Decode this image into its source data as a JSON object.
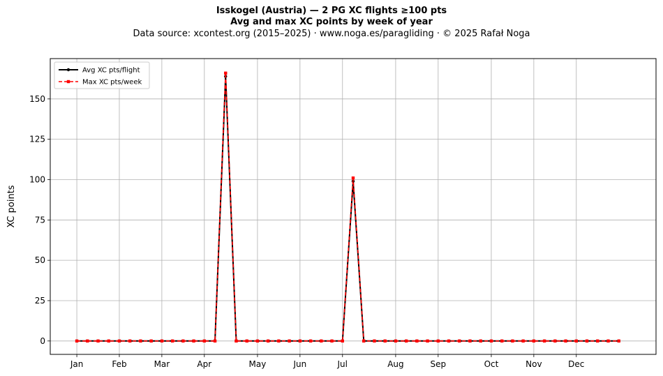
{
  "chart_data": {
    "type": "line",
    "title_line1": "Isskogel (Austria)  —  2 PG XC flights ≥100 pts",
    "title_line2": "Avg and max XC points by week of year",
    "subtitle": "Data source: xcontest.org (2015–2025)  ·  www.noga.es/paragliding  ·  © 2025 Rafał Noga",
    "ylabel": "XC points",
    "xlabel": "",
    "x_ticks": [
      {
        "label": "Jan",
        "week": 1
      },
      {
        "label": "Feb",
        "week": 5
      },
      {
        "label": "Mar",
        "week": 9
      },
      {
        "label": "Apr",
        "week": 13
      },
      {
        "label": "May",
        "week": 18
      },
      {
        "label": "Jun",
        "week": 22
      },
      {
        "label": "Jul",
        "week": 26
      },
      {
        "label": "Aug",
        "week": 31
      },
      {
        "label": "Sep",
        "week": 35
      },
      {
        "label": "Oct",
        "week": 40
      },
      {
        "label": "Nov",
        "week": 44
      },
      {
        "label": "Dec",
        "week": 48
      }
    ],
    "y_ticks": [
      0,
      25,
      50,
      75,
      100,
      125,
      150
    ],
    "xlim": [
      -1.5,
      55.5
    ],
    "ylim": [
      -8.3,
      175
    ],
    "grid": true,
    "legend_position": "top-left",
    "x": [
      1,
      2,
      3,
      4,
      5,
      6,
      7,
      8,
      9,
      10,
      11,
      12,
      13,
      14,
      15,
      16,
      17,
      18,
      19,
      20,
      21,
      22,
      23,
      24,
      25,
      26,
      27,
      28,
      29,
      30,
      31,
      32,
      33,
      34,
      35,
      36,
      37,
      38,
      39,
      40,
      41,
      42,
      43,
      44,
      45,
      46,
      47,
      48,
      49,
      50,
      51,
      52
    ],
    "series": [
      {
        "name": "Avg XC pts/flight",
        "color": "#000000",
        "values": [
          0,
          0,
          0,
          0,
          0,
          0,
          0,
          0,
          0,
          0,
          0,
          0,
          0,
          0,
          164,
          0,
          0,
          0,
          0,
          0,
          0,
          0,
          0,
          0,
          0,
          0,
          99,
          0,
          0,
          0,
          0,
          0,
          0,
          0,
          0,
          0,
          0,
          0,
          0,
          0,
          0,
          0,
          0,
          0,
          0,
          0,
          0,
          0,
          0,
          0,
          0,
          0
        ]
      },
      {
        "name": "Max XC pts/week",
        "color": "#ff0000",
        "values": [
          0,
          0,
          0,
          0,
          0,
          0,
          0,
          0,
          0,
          0,
          0,
          0,
          0,
          0,
          166,
          0,
          0,
          0,
          0,
          0,
          0,
          0,
          0,
          0,
          0,
          0,
          101,
          0,
          0,
          0,
          0,
          0,
          0,
          0,
          0,
          0,
          0,
          0,
          0,
          0,
          0,
          0,
          0,
          0,
          0,
          0,
          0,
          0,
          0,
          0,
          0,
          0
        ]
      }
    ]
  }
}
